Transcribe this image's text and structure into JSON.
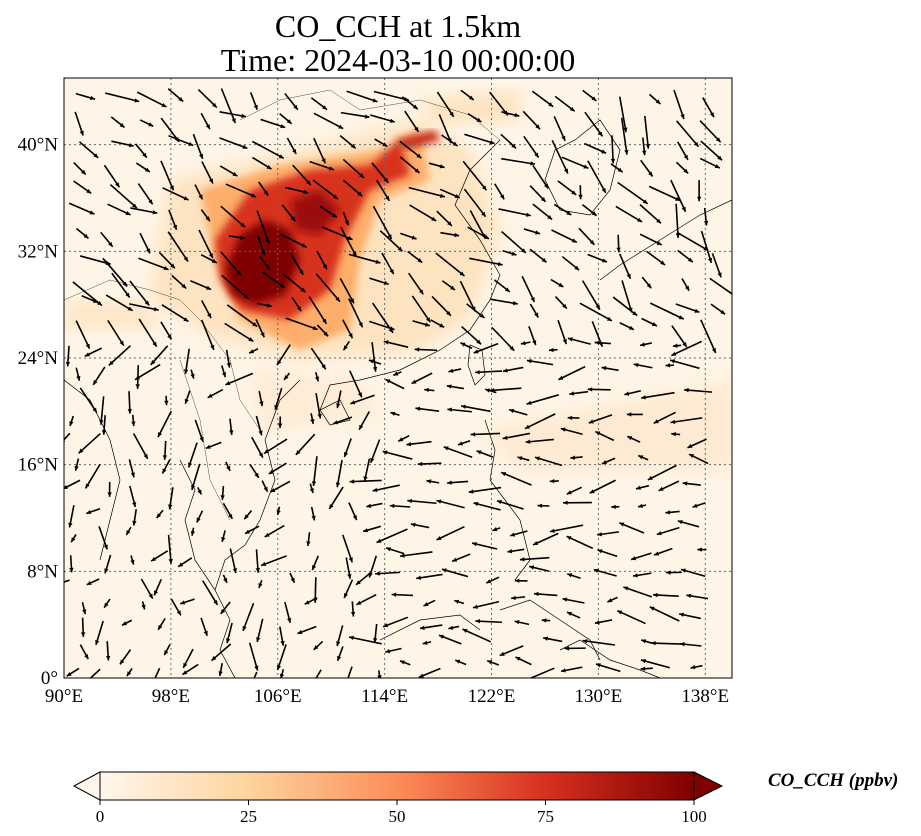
{
  "title": "CO_CCH at 1.5km",
  "subtitle": "Time: 2024-03-10 00:00:00",
  "map": {
    "lon_range": [
      90,
      140
    ],
    "lat_range": [
      0,
      45
    ],
    "lon_ticks": [
      "90°E",
      "98°E",
      "106°E",
      "114°E",
      "122°E",
      "130°E",
      "138°E"
    ],
    "lat_ticks": [
      "0°",
      "8°N",
      "16°N",
      "24°N",
      "32°N",
      "40°N"
    ],
    "lon_values": [
      90,
      98,
      106,
      114,
      122,
      130,
      138
    ],
    "lat_values": [
      0,
      8,
      16,
      24,
      32,
      40
    ],
    "gridlines": true,
    "colormap": "OrRd",
    "plume_center": {
      "lon": 105,
      "lat": 30
    },
    "features": [
      "coastlines",
      "country-borders",
      "wind-vectors"
    ]
  },
  "colorbar": {
    "label": "CO_CCH (ppbv)",
    "min": 0,
    "max": 100,
    "ticks": [
      "0",
      "25",
      "50",
      "75",
      "100"
    ],
    "extend": "both",
    "colors": [
      "#fff7ec",
      "#fdd49e",
      "#fc8d59",
      "#d7301f",
      "#7f0000"
    ]
  }
}
